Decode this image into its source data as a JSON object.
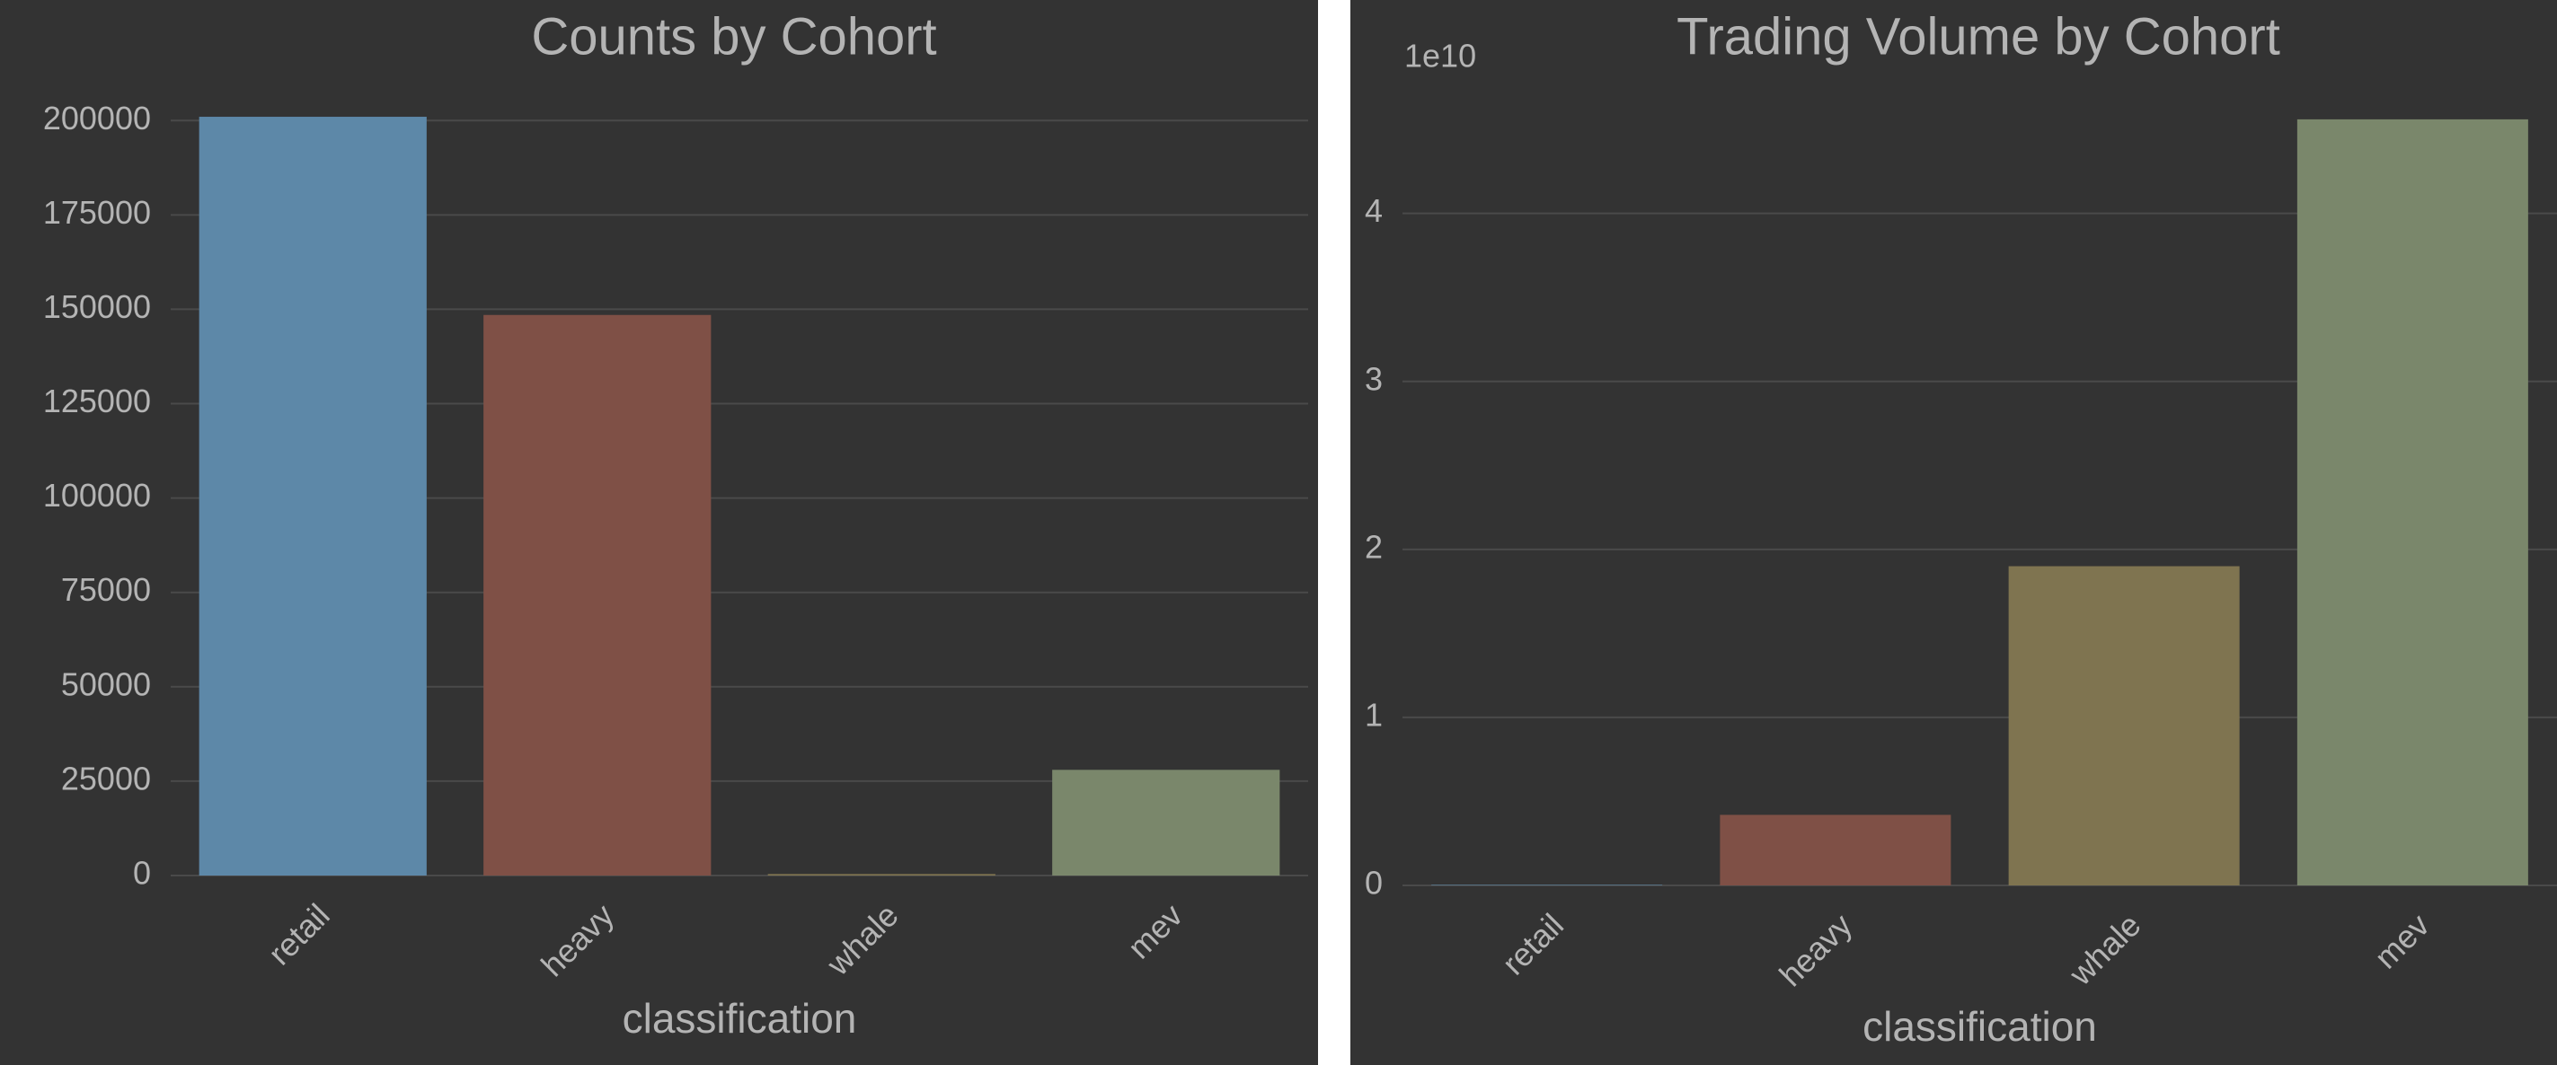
{
  "chart_data": [
    {
      "type": "bar",
      "title": "Counts by Cohort",
      "xlabel": "classification",
      "categories": [
        "retail",
        "heavy",
        "whale",
        "mev"
      ],
      "values": [
        201000,
        148500,
        400,
        28000
      ],
      "colors": [
        "#5d88a8",
        "#7f5046",
        "#7f7450",
        "#7a876b"
      ],
      "ylim": [
        0,
        211000
      ],
      "yticks": [
        0,
        25000,
        50000,
        75000,
        100000,
        125000,
        150000,
        175000,
        200000
      ],
      "grid": true
    },
    {
      "type": "bar",
      "title": "Trading Volume by Cohort",
      "xlabel": "classification",
      "y_offset_label": "1e10",
      "categories": [
        "retail",
        "heavy",
        "whale",
        "mev"
      ],
      "values": [
        0.003,
        0.42,
        1.9,
        4.56
      ],
      "colors": [
        "#5d88a8",
        "#7f5046",
        "#7f7450",
        "#7a876b"
      ],
      "ylim": [
        0,
        4.8
      ],
      "yticks": [
        0,
        1,
        2,
        3,
        4
      ],
      "grid": true
    }
  ]
}
